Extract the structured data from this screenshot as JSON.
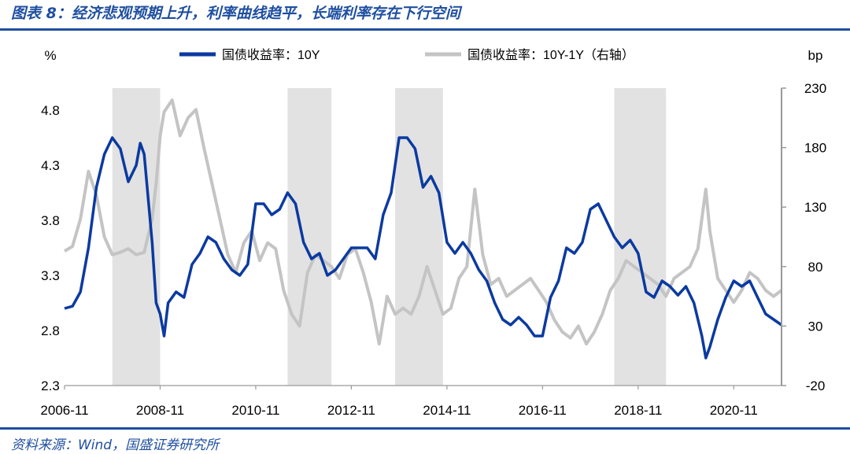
{
  "figure": {
    "title": "图表 8：经济悲观预期上升，利率曲线趋平，长端利率存在下行空间",
    "source": "资料来源：Wind，国盛证券研究所",
    "colors": {
      "accent": "#1f4fa0",
      "series_10y": "#0b3aa0",
      "series_spread": "#c4c4c4",
      "shade": "#e2e2e2"
    }
  },
  "chart_data": {
    "type": "line",
    "left_axis_unit": "%",
    "right_axis_unit": "bp",
    "y_left_ticks": [
      "4.8",
      "4.3",
      "3.8",
      "3.3",
      "2.8",
      "2.3"
    ],
    "y_right_ticks": [
      "230",
      "180",
      "130",
      "80",
      "30",
      "-20"
    ],
    "y_left_range": [
      2.3,
      5.0
    ],
    "y_right_range": [
      -20,
      230
    ],
    "x_range": [
      "2006-11",
      "2021-11"
    ],
    "x_ticks": [
      "2006-11",
      "2008-11",
      "2010-11",
      "2012-11",
      "2014-11",
      "2016-11",
      "2018-11",
      "2020-11"
    ],
    "legend_position": "top",
    "grid": false,
    "shaded_periods": [
      [
        "2007-11",
        "2008-11"
      ],
      [
        "2011-07",
        "2012-06"
      ],
      [
        "2013-10",
        "2014-10"
      ],
      [
        "2018-05",
        "2019-06"
      ]
    ],
    "series": [
      {
        "name": "国债收益率：10Y",
        "axis": "left",
        "points": [
          [
            "2006-11",
            3.0
          ],
          [
            "2007-01",
            3.02
          ],
          [
            "2007-03",
            3.15
          ],
          [
            "2007-05",
            3.55
          ],
          [
            "2007-07",
            4.1
          ],
          [
            "2007-09",
            4.4
          ],
          [
            "2007-11",
            4.55
          ],
          [
            "2008-01",
            4.45
          ],
          [
            "2008-03",
            4.15
          ],
          [
            "2008-05",
            4.3
          ],
          [
            "2008-06",
            4.5
          ],
          [
            "2008-07",
            4.4
          ],
          [
            "2008-09",
            3.6
          ],
          [
            "2008-10",
            3.05
          ],
          [
            "2008-11",
            2.95
          ],
          [
            "2008-12",
            2.75
          ],
          [
            "2009-01",
            3.05
          ],
          [
            "2009-03",
            3.15
          ],
          [
            "2009-05",
            3.1
          ],
          [
            "2009-07",
            3.4
          ],
          [
            "2009-09",
            3.5
          ],
          [
            "2009-11",
            3.65
          ],
          [
            "2010-01",
            3.6
          ],
          [
            "2010-03",
            3.45
          ],
          [
            "2010-05",
            3.35
          ],
          [
            "2010-07",
            3.3
          ],
          [
            "2010-09",
            3.4
          ],
          [
            "2010-11",
            3.95
          ],
          [
            "2011-01",
            3.95
          ],
          [
            "2011-03",
            3.85
          ],
          [
            "2011-05",
            3.9
          ],
          [
            "2011-07",
            4.05
          ],
          [
            "2011-09",
            3.95
          ],
          [
            "2011-11",
            3.6
          ],
          [
            "2012-01",
            3.45
          ],
          [
            "2012-03",
            3.5
          ],
          [
            "2012-05",
            3.3
          ],
          [
            "2012-07",
            3.35
          ],
          [
            "2012-09",
            3.45
          ],
          [
            "2012-11",
            3.55
          ],
          [
            "2013-01",
            3.55
          ],
          [
            "2013-03",
            3.55
          ],
          [
            "2013-05",
            3.45
          ],
          [
            "2013-07",
            3.85
          ],
          [
            "2013-09",
            4.05
          ],
          [
            "2013-11",
            4.55
          ],
          [
            "2014-01",
            4.55
          ],
          [
            "2014-03",
            4.45
          ],
          [
            "2014-05",
            4.1
          ],
          [
            "2014-07",
            4.2
          ],
          [
            "2014-09",
            4.05
          ],
          [
            "2014-11",
            3.6
          ],
          [
            "2015-01",
            3.5
          ],
          [
            "2015-03",
            3.6
          ],
          [
            "2015-05",
            3.5
          ],
          [
            "2015-07",
            3.35
          ],
          [
            "2015-09",
            3.25
          ],
          [
            "2015-11",
            3.05
          ],
          [
            "2016-01",
            2.9
          ],
          [
            "2016-03",
            2.85
          ],
          [
            "2016-05",
            2.92
          ],
          [
            "2016-07",
            2.85
          ],
          [
            "2016-09",
            2.75
          ],
          [
            "2016-11",
            2.75
          ],
          [
            "2017-01",
            3.1
          ],
          [
            "2017-03",
            3.25
          ],
          [
            "2017-05",
            3.55
          ],
          [
            "2017-07",
            3.5
          ],
          [
            "2017-09",
            3.6
          ],
          [
            "2017-11",
            3.9
          ],
          [
            "2018-01",
            3.95
          ],
          [
            "2018-03",
            3.8
          ],
          [
            "2018-05",
            3.65
          ],
          [
            "2018-07",
            3.55
          ],
          [
            "2018-09",
            3.62
          ],
          [
            "2018-11",
            3.5
          ],
          [
            "2019-01",
            3.15
          ],
          [
            "2019-03",
            3.1
          ],
          [
            "2019-05",
            3.25
          ],
          [
            "2019-07",
            3.2
          ],
          [
            "2019-09",
            3.12
          ],
          [
            "2019-11",
            3.2
          ],
          [
            "2020-01",
            3.05
          ],
          [
            "2020-03",
            2.75
          ],
          [
            "2020-04",
            2.55
          ],
          [
            "2020-05",
            2.65
          ],
          [
            "2020-07",
            2.9
          ],
          [
            "2020-09",
            3.1
          ],
          [
            "2020-11",
            3.25
          ],
          [
            "2021-01",
            3.2
          ],
          [
            "2021-03",
            3.25
          ],
          [
            "2021-05",
            3.1
          ],
          [
            "2021-07",
            2.95
          ],
          [
            "2021-09",
            2.9
          ],
          [
            "2021-11",
            2.85
          ]
        ]
      },
      {
        "name": "国债收益率：10Y-1Y（右轴）",
        "axis": "right",
        "points": [
          [
            "2006-11",
            93
          ],
          [
            "2007-01",
            97
          ],
          [
            "2007-03",
            120
          ],
          [
            "2007-05",
            160
          ],
          [
            "2007-07",
            140
          ],
          [
            "2007-09",
            105
          ],
          [
            "2007-11",
            90
          ],
          [
            "2008-01",
            92
          ],
          [
            "2008-03",
            95
          ],
          [
            "2008-05",
            90
          ],
          [
            "2008-07",
            92
          ],
          [
            "2008-09",
            120
          ],
          [
            "2008-10",
            150
          ],
          [
            "2008-11",
            190
          ],
          [
            "2008-12",
            210
          ],
          [
            "2009-02",
            220
          ],
          [
            "2009-04",
            190
          ],
          [
            "2009-06",
            205
          ],
          [
            "2009-08",
            212
          ],
          [
            "2009-10",
            180
          ],
          [
            "2009-12",
            150
          ],
          [
            "2010-02",
            120
          ],
          [
            "2010-04",
            90
          ],
          [
            "2010-06",
            75
          ],
          [
            "2010-08",
            100
          ],
          [
            "2010-10",
            110
          ],
          [
            "2010-12",
            85
          ],
          [
            "2011-02",
            100
          ],
          [
            "2011-04",
            95
          ],
          [
            "2011-06",
            60
          ],
          [
            "2011-08",
            40
          ],
          [
            "2011-10",
            30
          ],
          [
            "2011-12",
            75
          ],
          [
            "2012-02",
            90
          ],
          [
            "2012-04",
            85
          ],
          [
            "2012-06",
            80
          ],
          [
            "2012-08",
            70
          ],
          [
            "2012-10",
            90
          ],
          [
            "2012-12",
            95
          ],
          [
            "2013-02",
            75
          ],
          [
            "2013-04",
            50
          ],
          [
            "2013-06",
            15
          ],
          [
            "2013-08",
            55
          ],
          [
            "2013-10",
            40
          ],
          [
            "2013-12",
            45
          ],
          [
            "2014-02",
            40
          ],
          [
            "2014-04",
            55
          ],
          [
            "2014-06",
            80
          ],
          [
            "2014-08",
            60
          ],
          [
            "2014-10",
            40
          ],
          [
            "2014-12",
            45
          ],
          [
            "2015-02",
            70
          ],
          [
            "2015-04",
            80
          ],
          [
            "2015-06",
            145
          ],
          [
            "2015-08",
            90
          ],
          [
            "2015-10",
            65
          ],
          [
            "2015-12",
            70
          ],
          [
            "2016-02",
            55
          ],
          [
            "2016-04",
            60
          ],
          [
            "2016-06",
            65
          ],
          [
            "2016-08",
            70
          ],
          [
            "2016-10",
            60
          ],
          [
            "2016-12",
            50
          ],
          [
            "2017-02",
            35
          ],
          [
            "2017-04",
            25
          ],
          [
            "2017-06",
            20
          ],
          [
            "2017-08",
            30
          ],
          [
            "2017-10",
            15
          ],
          [
            "2017-12",
            25
          ],
          [
            "2018-02",
            40
          ],
          [
            "2018-04",
            60
          ],
          [
            "2018-06",
            70
          ],
          [
            "2018-08",
            85
          ],
          [
            "2018-10",
            80
          ],
          [
            "2018-12",
            75
          ],
          [
            "2019-02",
            70
          ],
          [
            "2019-04",
            65
          ],
          [
            "2019-06",
            55
          ],
          [
            "2019-08",
            70
          ],
          [
            "2019-10",
            75
          ],
          [
            "2019-12",
            80
          ],
          [
            "2020-02",
            95
          ],
          [
            "2020-04",
            145
          ],
          [
            "2020-05",
            110
          ],
          [
            "2020-07",
            70
          ],
          [
            "2020-09",
            60
          ],
          [
            "2020-11",
            50
          ],
          [
            "2021-01",
            60
          ],
          [
            "2021-03",
            75
          ],
          [
            "2021-05",
            70
          ],
          [
            "2021-07",
            60
          ],
          [
            "2021-09",
            55
          ],
          [
            "2021-11",
            60
          ]
        ]
      }
    ]
  }
}
